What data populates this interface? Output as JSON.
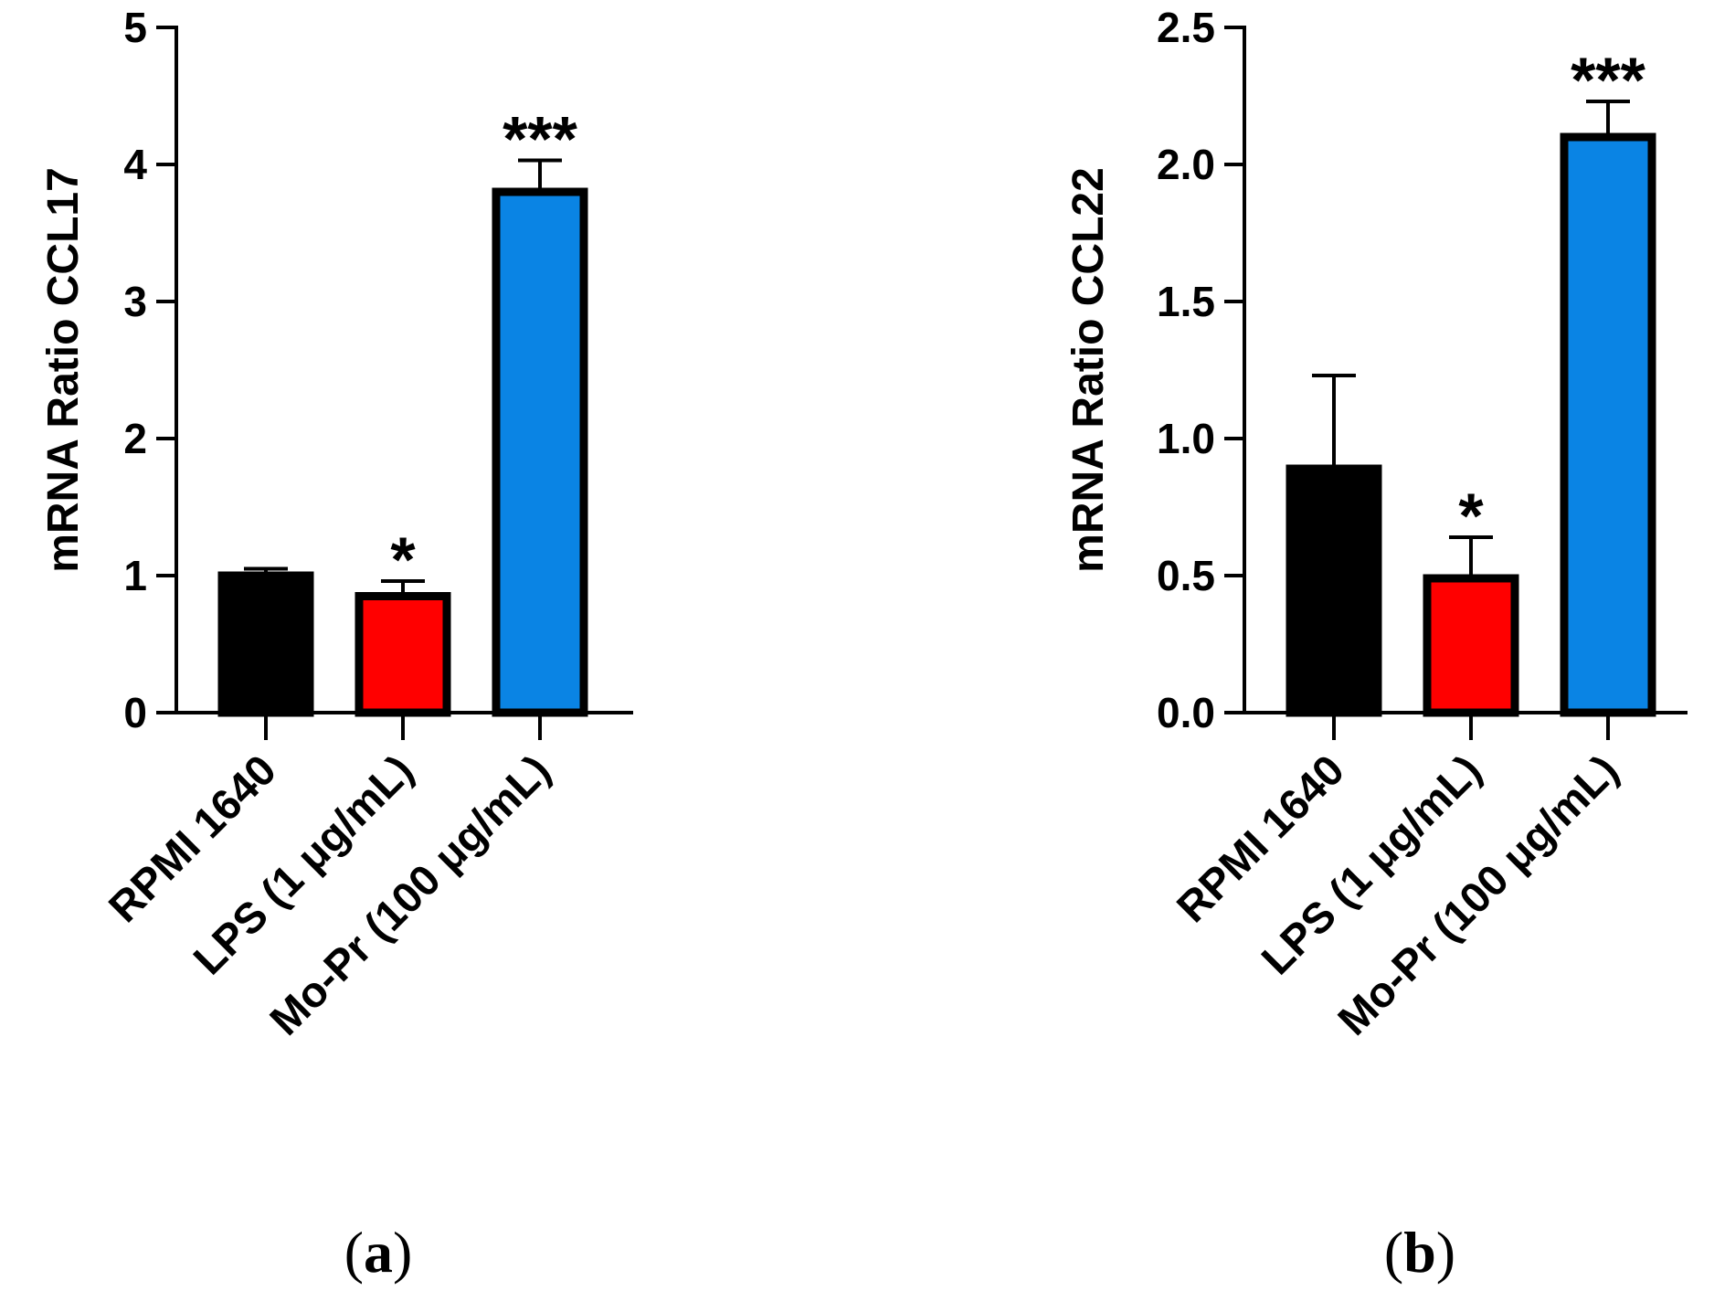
{
  "chart_data": [
    {
      "type": "bar",
      "panel": "a",
      "categories": [
        "RPMI 1640",
        "LPS (1 μg/mL)",
        "Mo-Pr (100 μg/mL)"
      ],
      "values": [
        1.0,
        0.85,
        3.8
      ],
      "errors": [
        0.05,
        0.11,
        0.23
      ],
      "colors": [
        "#000000",
        "#ff0000",
        "#0a84e4"
      ],
      "significance": [
        "",
        "*",
        "***"
      ],
      "ylabel": "mRNA Ratio CCL17",
      "ylim": [
        0,
        5
      ],
      "yticks": [
        "0",
        "1",
        "2",
        "3",
        "4",
        "5"
      ],
      "ytick_values": [
        0,
        1,
        2,
        3,
        4,
        5
      ]
    },
    {
      "type": "bar",
      "panel": "b",
      "categories": [
        "RPMI 1640",
        "LPS (1 μg/mL)",
        "Mo-Pr (100 μg/mL)"
      ],
      "values": [
        0.89,
        0.49,
        2.1
      ],
      "errors": [
        0.34,
        0.15,
        0.13
      ],
      "colors": [
        "#000000",
        "#ff0000",
        "#0a84e4"
      ],
      "significance": [
        "",
        "*",
        "***"
      ],
      "ylabel": "mRNA Ratio CCL22",
      "ylim": [
        0,
        2.5
      ],
      "yticks": [
        "0.0",
        "0.5",
        "1.0",
        "1.5",
        "2.0",
        "2.5"
      ],
      "ytick_values": [
        0,
        0.5,
        1.0,
        1.5,
        2.0,
        2.5
      ]
    }
  ],
  "panel_labels": [
    "(a)",
    "(b)"
  ]
}
